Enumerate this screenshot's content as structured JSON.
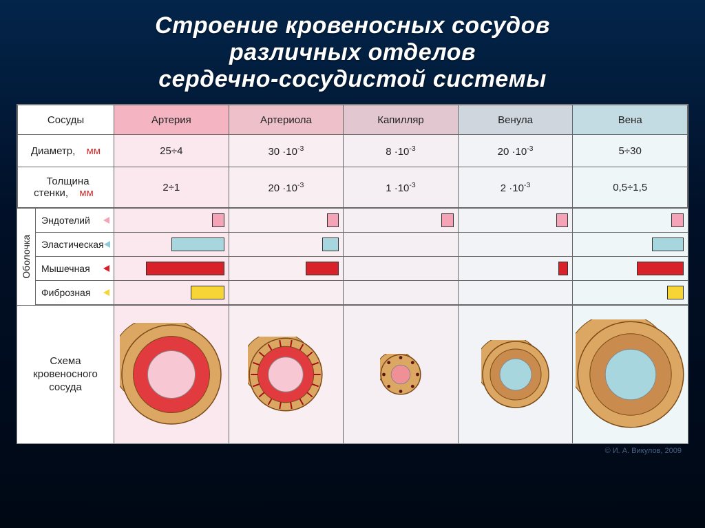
{
  "title_lines": [
    "Строение кровеносных сосудов",
    "различных отделов",
    "сердечно-сосудистой системы"
  ],
  "credit": "© И. А. Викулов, 2009",
  "columns": {
    "row_label_header": "Сосуды",
    "names": [
      "Артерия",
      "Артериола",
      "Капилляр",
      "Венула",
      "Вена"
    ],
    "bg_classes": [
      "bg-art",
      "bg-arl",
      "bg-cap",
      "bg-vnl",
      "bg-ven"
    ],
    "pale_classes": [
      "pale-art",
      "pale-arl",
      "pale-cap",
      "pale-vnl",
      "pale-ven"
    ]
  },
  "rows": {
    "diameter": {
      "label": "Диаметр,",
      "unit": "мм",
      "values_html": [
        "25÷4",
        "30 ·10<sup>-3</sup>",
        "8 ·10<sup>-3</sup>",
        "20 ·10<sup>-3</sup>",
        "5÷30"
      ]
    },
    "thickness": {
      "label": "Толщина стенки,",
      "unit": "мм",
      "values_html": [
        "2÷1",
        "20 ·10<sup>-3</sup>",
        "1 ·10<sup>-3</sup>",
        "2 ·10<sup>-3</sup>",
        "0,5÷1,5"
      ]
    }
  },
  "sheath": {
    "group_label": "Оболочка",
    "layers": [
      {
        "name": "Эндотелий",
        "tri": "pink",
        "color": "c-pink"
      },
      {
        "name": "Эластическая",
        "tri": "blue",
        "color": "c-blue"
      },
      {
        "name": "Мышечная",
        "tri": "red",
        "color": "c-red"
      },
      {
        "name": "Фиброзная",
        "tri": "yel",
        "color": "c-yel"
      }
    ],
    "bars_pct": [
      [
        10,
        48,
        72,
        30
      ],
      [
        10,
        14,
        30,
        0
      ],
      [
        10,
        0,
        0,
        0
      ],
      [
        10,
        0,
        8,
        0
      ],
      [
        10,
        28,
        42,
        14
      ]
    ]
  },
  "diagram_label": "Схема кровеносного сосуда",
  "vessel_svg": {
    "sizes": [
      150,
      110,
      60,
      100,
      160
    ],
    "outer": "#dca763",
    "outer_stroke": "#7a4a17",
    "mid_art": "#e13a3f",
    "mid_ven": "#c98c4e",
    "lumen_art": "#f7c7d4",
    "lumen_ven": "#a7d6df",
    "lumen_cap": "#f18f96",
    "dots": "#5a1a12"
  }
}
